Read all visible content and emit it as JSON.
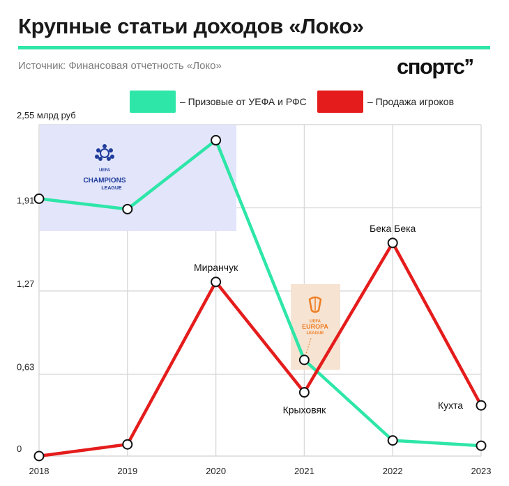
{
  "title": "Крупные статьи доходов «Локо»",
  "source": "Источник: Финансовая отчетность «Локо»",
  "brand": "спортс’’",
  "colors": {
    "accent": "#2ee6a8",
    "prize": "#2ee6a8",
    "sales": "#e51c1c",
    "cl_box": "#e3e5fb",
    "el_box": "#f6e3d2",
    "el_orange": "#ef7d22",
    "cl_blue": "#1f3c9b"
  },
  "legend": [
    {
      "label": "– Призовые от УЕФА и РФС",
      "color": "#2ee6a8"
    },
    {
      "label": "– Продажа игроков",
      "color": "#e51c1c"
    }
  ],
  "badges": {
    "cl_top": "UEFA",
    "cl_main": "CHAMPIONS",
    "cl_sub": "LEAGUE",
    "el_top": "UEFA",
    "el_main": "EUROPA",
    "el_sub": "LEAGUE"
  },
  "chart_data": {
    "type": "line",
    "x": [
      "2018",
      "2019",
      "2020",
      "2021",
      "2022",
      "2023"
    ],
    "y_unit_label": "2,55 млрд руб",
    "y_ticks": [
      "0",
      "0,63",
      "1,27",
      "1,91"
    ],
    "ylim": [
      0,
      2.55
    ],
    "grid": true,
    "series": [
      {
        "name": "Призовые от УЕФА и РФС",
        "color": "#2ee6a8",
        "values": [
          1.98,
          1.9,
          2.43,
          0.74,
          0.12,
          0.08
        ]
      },
      {
        "name": "Продажа игроков",
        "color": "#e51c1c",
        "values": [
          0.0,
          0.09,
          1.34,
          0.49,
          1.64,
          0.39
        ]
      }
    ],
    "annotations": [
      {
        "text": "Миранчук",
        "x": "2020",
        "y": 1.34,
        "pos": "above"
      },
      {
        "text": "Крыховяк",
        "x": "2021",
        "y": 0.49,
        "pos": "below"
      },
      {
        "text": "Бека Бека",
        "x": "2022",
        "y": 1.64,
        "pos": "above"
      },
      {
        "text": "Кухта",
        "x": "2023",
        "y": 0.39,
        "pos": "left"
      }
    ]
  }
}
